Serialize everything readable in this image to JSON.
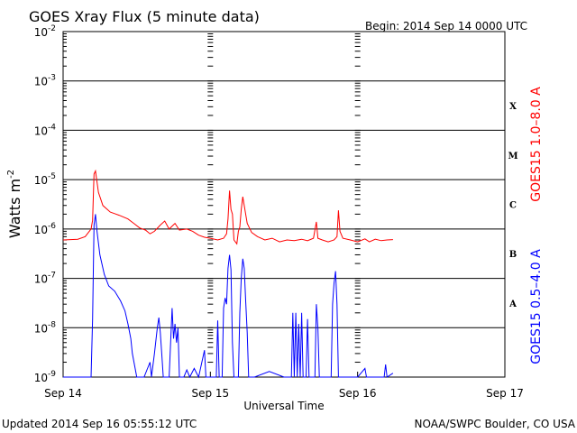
{
  "header": {
    "title": "GOES Xray Flux (5 minute data)",
    "begin_label": "Begin:  2014 Sep 14 0000 UTC"
  },
  "footer": {
    "updated": "Updated 2014 Sep 16 05:55:12 UTC",
    "credit": "NOAA/SWPC Boulder, CO USA"
  },
  "colors": {
    "long_channel": "#ff0000",
    "short_channel": "#0000ff",
    "grid": "#000000"
  },
  "chart_data": {
    "type": "line",
    "title": "GOES Xray Flux (5 minute data)",
    "xlabel": "Universal Time",
    "ylabel": {
      "base": "Watts m",
      "sup": "-2"
    },
    "x_unit": "days since 2014 Sep 14 0000 UTC",
    "xlim": [
      0,
      3
    ],
    "ylim": [
      1e-09,
      0.01
    ],
    "y_scale": "log",
    "grid": true,
    "x_ticks": [
      {
        "x": 0,
        "label": "Sep 14"
      },
      {
        "x": 1,
        "label": "Sep 15"
      },
      {
        "x": 2,
        "label": "Sep 16"
      },
      {
        "x": 3,
        "label": "Sep 17"
      }
    ],
    "y_ticks": [
      {
        "exp": -9,
        "base": "10",
        "sup": "-9"
      },
      {
        "exp": -8,
        "base": "10",
        "sup": "-8"
      },
      {
        "exp": -7,
        "base": "10",
        "sup": "-7"
      },
      {
        "exp": -6,
        "base": "10",
        "sup": "-6"
      },
      {
        "exp": -5,
        "base": "10",
        "sup": "-5"
      },
      {
        "exp": -4,
        "base": "10",
        "sup": "-4"
      },
      {
        "exp": -3,
        "base": "10",
        "sup": "-3"
      },
      {
        "exp": -2,
        "base": "10",
        "sup": "-2"
      }
    ],
    "flare_classes": [
      {
        "label": "A",
        "exp": -8
      },
      {
        "label": "B",
        "exp": -7
      },
      {
        "label": "C",
        "exp": -6
      },
      {
        "label": "M",
        "exp": -5
      },
      {
        "label": "X",
        "exp": -4
      }
    ],
    "series": [
      {
        "name": "GOES15 1.0–8.0 A",
        "color": "#ff0000",
        "points": [
          [
            0.0,
            6e-07
          ],
          [
            0.1,
            6.2e-07
          ],
          [
            0.15,
            7e-07
          ],
          [
            0.19,
            1e-06
          ],
          [
            0.2,
            1.5e-06
          ],
          [
            0.21,
            1.3e-05
          ],
          [
            0.22,
            1.5e-05
          ],
          [
            0.24,
            5.5e-06
          ],
          [
            0.27,
            3e-06
          ],
          [
            0.32,
            2.2e-06
          ],
          [
            0.38,
            1.9e-06
          ],
          [
            0.44,
            1.6e-06
          ],
          [
            0.48,
            1.3e-06
          ],
          [
            0.52,
            1.05e-06
          ],
          [
            0.56,
            9.5e-07
          ],
          [
            0.59,
            8e-07
          ],
          [
            0.62,
            9e-07
          ],
          [
            0.66,
            1.2e-06
          ],
          [
            0.69,
            1.45e-06
          ],
          [
            0.72,
            1e-06
          ],
          [
            0.76,
            1.3e-06
          ],
          [
            0.79,
            9.5e-07
          ],
          [
            0.84,
            1e-06
          ],
          [
            0.88,
            9e-07
          ],
          [
            0.92,
            7.5e-07
          ],
          [
            0.96,
            6.8e-07
          ],
          [
            1.0,
            6.5e-07
          ],
          [
            1.05,
            6e-07
          ],
          [
            1.09,
            6.5e-07
          ],
          [
            1.11,
            8e-07
          ],
          [
            1.12,
            1.6e-06
          ],
          [
            1.13,
            6e-06
          ],
          [
            1.14,
            2.5e-06
          ],
          [
            1.15,
            2e-06
          ],
          [
            1.16,
            6e-07
          ],
          [
            1.18,
            5e-07
          ],
          [
            1.19,
            9e-07
          ],
          [
            1.2,
            1.1e-06
          ],
          [
            1.21,
            2.5e-06
          ],
          [
            1.22,
            4.5e-06
          ],
          [
            1.23,
            3e-06
          ],
          [
            1.25,
            1.3e-06
          ],
          [
            1.28,
            8.5e-07
          ],
          [
            1.32,
            7e-07
          ],
          [
            1.37,
            6e-07
          ],
          [
            1.42,
            6.5e-07
          ],
          [
            1.47,
            5.5e-07
          ],
          [
            1.52,
            6e-07
          ],
          [
            1.57,
            5.8e-07
          ],
          [
            1.62,
            6.2e-07
          ],
          [
            1.66,
            5.8e-07
          ],
          [
            1.7,
            6.5e-07
          ],
          [
            1.72,
            1.4e-06
          ],
          [
            1.73,
            6.5e-07
          ],
          [
            1.76,
            6e-07
          ],
          [
            1.8,
            5.5e-07
          ],
          [
            1.84,
            6e-07
          ],
          [
            1.86,
            7e-07
          ],
          [
            1.87,
            2.4e-06
          ],
          [
            1.88,
            9e-07
          ],
          [
            1.9,
            6.5e-07
          ],
          [
            1.95,
            6e-07
          ],
          [
            2.0,
            5.5e-07
          ],
          [
            2.05,
            6.3e-07
          ],
          [
            2.08,
            5.5e-07
          ],
          [
            2.12,
            6.2e-07
          ],
          [
            2.16,
            5.8e-07
          ],
          [
            2.2,
            6e-07
          ],
          [
            2.24,
            6.1e-07
          ]
        ]
      },
      {
        "name": "GOES15 0.5–4.0 A",
        "color": "#0000ff",
        "points": [
          [
            0.0,
            1e-09
          ],
          [
            0.19,
            1e-09
          ],
          [
            0.2,
            1.5e-08
          ],
          [
            0.21,
            1.2e-06
          ],
          [
            0.22,
            2e-06
          ],
          [
            0.23,
            9e-07
          ],
          [
            0.25,
            3e-07
          ],
          [
            0.28,
            1.2e-07
          ],
          [
            0.31,
            7e-08
          ],
          [
            0.35,
            5.5e-08
          ],
          [
            0.39,
            3.5e-08
          ],
          [
            0.42,
            2.2e-08
          ],
          [
            0.44,
            1.2e-08
          ],
          [
            0.46,
            6e-09
          ],
          [
            0.47,
            3e-09
          ],
          [
            0.5,
            1e-09
          ],
          [
            0.55,
            1e-09
          ],
          [
            0.59,
            2e-09
          ],
          [
            0.6,
            1e-09
          ],
          [
            0.62,
            3e-09
          ],
          [
            0.64,
            1e-08
          ],
          [
            0.65,
            1.6e-08
          ],
          [
            0.66,
            8e-09
          ],
          [
            0.67,
            3e-09
          ],
          [
            0.68,
            1e-09
          ],
          [
            0.72,
            1e-09
          ],
          [
            0.74,
            2.5e-08
          ],
          [
            0.75,
            6e-09
          ],
          [
            0.76,
            1.2e-08
          ],
          [
            0.77,
            5e-09
          ],
          [
            0.78,
            1e-08
          ],
          [
            0.79,
            1e-09
          ],
          [
            0.82,
            1e-09
          ],
          [
            0.84,
            1.4e-09
          ],
          [
            0.86,
            1e-09
          ],
          [
            0.89,
            1.5e-09
          ],
          [
            0.92,
            1e-09
          ],
          [
            0.96,
            3.5e-09
          ],
          [
            0.97,
            1e-09
          ],
          [
            1.0,
            1e-09
          ],
          [
            1.04,
            1e-09
          ],
          [
            1.05,
            1.4e-08
          ],
          [
            1.06,
            1e-09
          ],
          [
            1.08,
            1e-09
          ],
          [
            1.09,
            2.5e-08
          ],
          [
            1.1,
            4e-08
          ],
          [
            1.11,
            3e-08
          ],
          [
            1.12,
            1.6e-07
          ],
          [
            1.13,
            3e-07
          ],
          [
            1.14,
            1.5e-07
          ],
          [
            1.15,
            5e-09
          ],
          [
            1.16,
            1e-09
          ],
          [
            1.19,
            1e-09
          ],
          [
            1.2,
            2e-08
          ],
          [
            1.21,
            1e-07
          ],
          [
            1.22,
            2.5e-07
          ],
          [
            1.23,
            1.6e-07
          ],
          [
            1.24,
            3.5e-08
          ],
          [
            1.25,
            8e-09
          ],
          [
            1.26,
            1e-09
          ],
          [
            1.3,
            1e-09
          ],
          [
            1.4,
            1.3e-09
          ],
          [
            1.5,
            1e-09
          ],
          [
            1.55,
            1e-09
          ],
          [
            1.56,
            2e-08
          ],
          [
            1.57,
            1e-09
          ],
          [
            1.58,
            2e-08
          ],
          [
            1.59,
            1e-09
          ],
          [
            1.6,
            1.2e-08
          ],
          [
            1.61,
            1e-09
          ],
          [
            1.62,
            2e-08
          ],
          [
            1.63,
            1e-09
          ],
          [
            1.65,
            1e-09
          ],
          [
            1.66,
            1.5e-08
          ],
          [
            1.67,
            1e-09
          ],
          [
            1.71,
            1e-09
          ],
          [
            1.72,
            3e-08
          ],
          [
            1.73,
            1e-08
          ],
          [
            1.74,
            1e-09
          ],
          [
            1.82,
            1e-09
          ],
          [
            1.83,
            3e-08
          ],
          [
            1.84,
            8e-08
          ],
          [
            1.85,
            1.4e-07
          ],
          [
            1.86,
            3e-08
          ],
          [
            1.87,
            1e-09
          ],
          [
            2.0,
            1e-09
          ],
          [
            2.05,
            1.5e-09
          ],
          [
            2.06,
            1e-09
          ],
          [
            2.18,
            1e-09
          ],
          [
            2.19,
            1.8e-09
          ],
          [
            2.2,
            1e-09
          ],
          [
            2.24,
            1.2e-09
          ]
        ]
      }
    ]
  }
}
